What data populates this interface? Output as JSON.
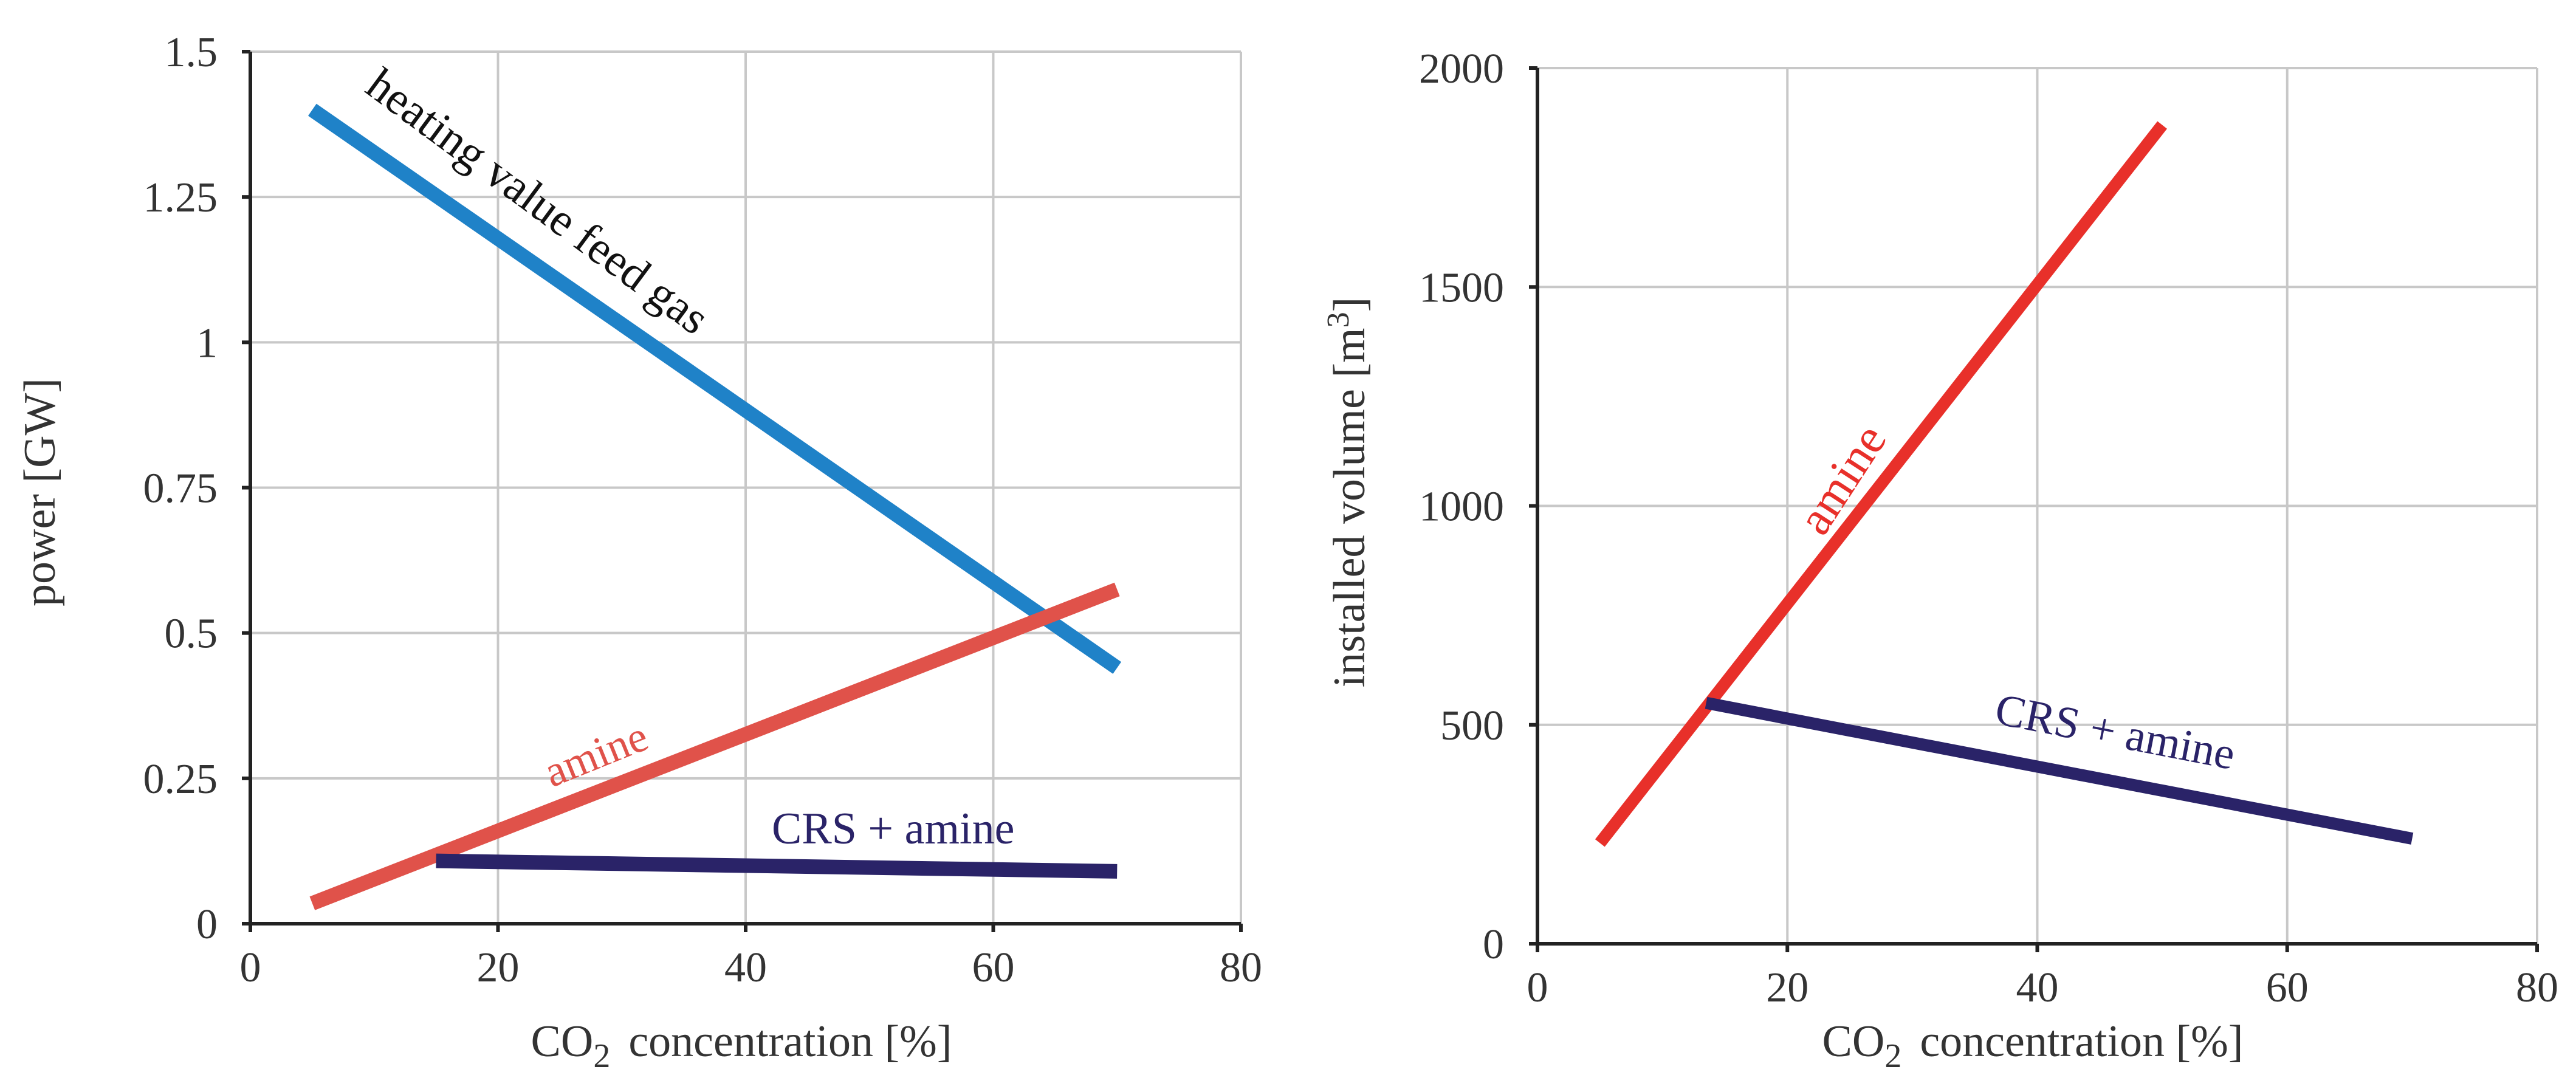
{
  "chart_data": [
    {
      "type": "line",
      "ylabel": "power [GW]",
      "xlabel_main": "CO",
      "xlabel_sub": "2",
      "xlabel_rest": "concentration  [%]",
      "xlim": [
        0,
        80
      ],
      "ylim": [
        0,
        1.5
      ],
      "xticks": [
        "0",
        "20",
        "40",
        "60",
        "80"
      ],
      "yticks": [
        "0",
        "0.25",
        "0.5",
        "0.75",
        "1",
        "1.25",
        "1.5"
      ],
      "grid": true,
      "series": [
        {
          "name": "heating value feed gas",
          "color": "#1f82c8",
          "x": [
            5,
            70
          ],
          "y": [
            1.4,
            0.44
          ]
        },
        {
          "name": "amine",
          "color": "#e0524a",
          "x": [
            5,
            70
          ],
          "y": [
            0.035,
            0.575
          ]
        },
        {
          "name": "CRS + amine",
          "color": "#2a2368",
          "x": [
            15,
            70
          ],
          "y": [
            0.108,
            0.09
          ]
        }
      ]
    },
    {
      "type": "line",
      "ylabel_main": "installed volume [m",
      "ylabel_sup": "3",
      "ylabel_end": "]",
      "xlabel_main": "CO",
      "xlabel_sub": "2",
      "xlabel_rest": "concentration  [%]",
      "xlim": [
        0,
        80
      ],
      "ylim": [
        0,
        2000
      ],
      "xticks": [
        "0",
        "20",
        "40",
        "60",
        "80"
      ],
      "yticks": [
        "0",
        "500",
        "1000",
        "1500",
        "2000"
      ],
      "grid": true,
      "series": [
        {
          "name": "amine",
          "color": "#e8302a",
          "x": [
            5,
            50
          ],
          "y": [
            230,
            1870
          ]
        },
        {
          "name": "CRS + amine",
          "color": "#2a2368",
          "x": [
            13.5,
            70
          ],
          "y": [
            550,
            240
          ]
        }
      ]
    }
  ]
}
